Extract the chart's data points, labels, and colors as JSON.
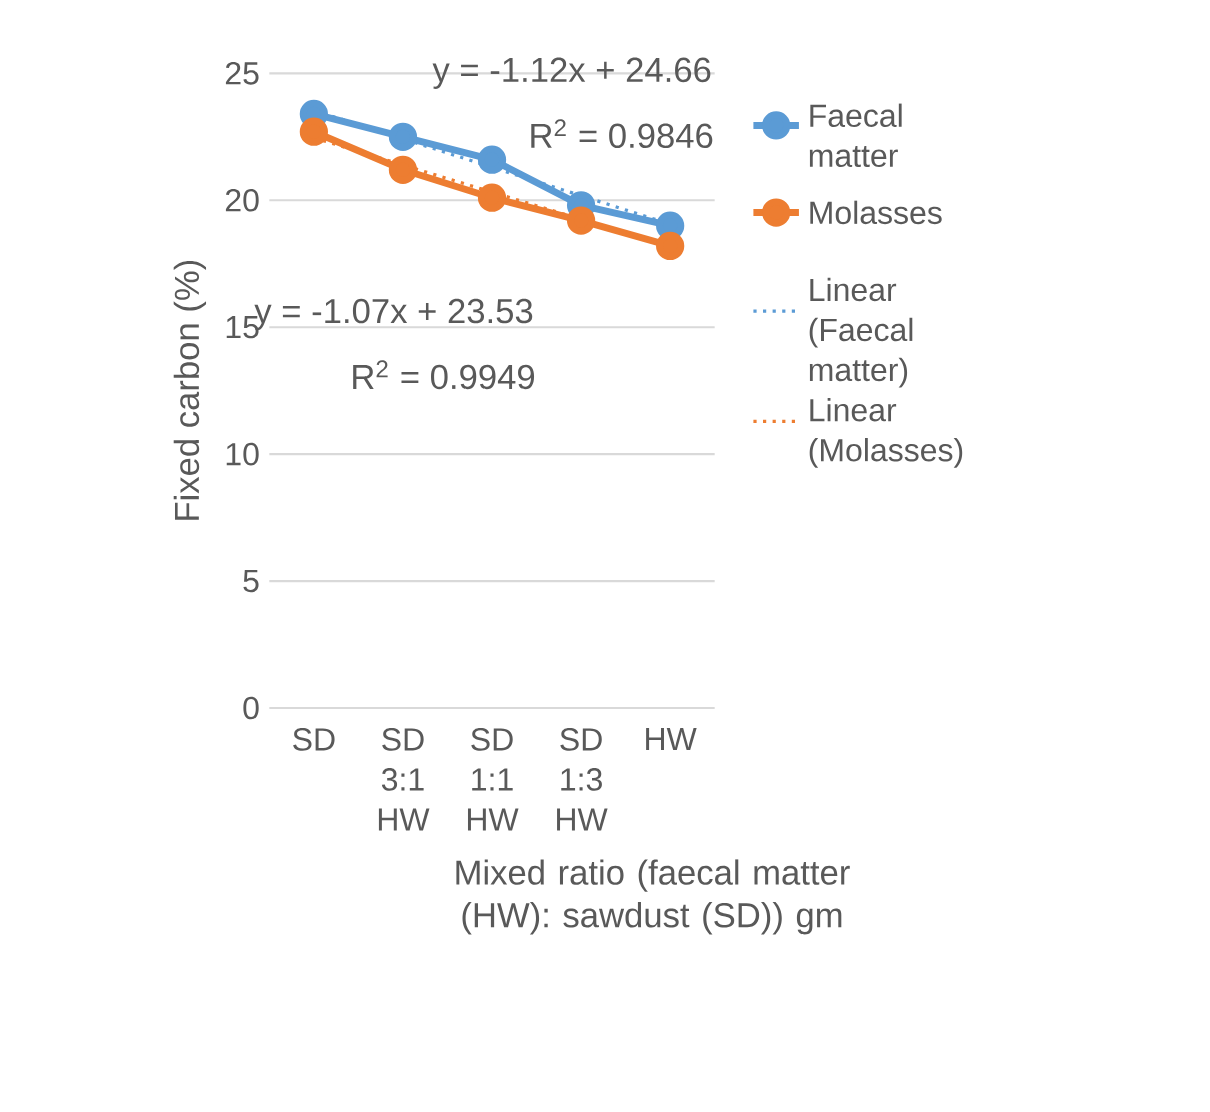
{
  "chart_data": {
    "type": "line",
    "ylabel": "Fixed carbon (%)",
    "xlabel": "Mixed ratio (faecal matter (HW): sawdust (SD)) gm",
    "categories": [
      "SD",
      "SD 3:1 HW",
      "SD 1:1 HW",
      "SD 1:3 HW",
      "HW"
    ],
    "series": [
      {
        "name": "Faecal matter",
        "color": "#5b9bd5",
        "values": [
          23.4,
          22.5,
          21.6,
          19.8,
          19.0
        ],
        "marker": "circle",
        "line_style": "solid"
      },
      {
        "name": "Molasses",
        "color": "#ed7d31",
        "values": [
          22.7,
          21.2,
          20.1,
          19.2,
          18.2
        ],
        "marker": "circle",
        "line_style": "solid"
      },
      {
        "name": "Linear (Faecal matter)",
        "color": "#5b9bd5",
        "values": [
          23.54,
          22.42,
          21.3,
          20.18,
          19.06
        ],
        "marker": "none",
        "line_style": "dotted"
      },
      {
        "name": "Linear (Molasses)",
        "color": "#ed7d31",
        "values": [
          22.46,
          21.39,
          20.32,
          19.25,
          18.18
        ],
        "marker": "none",
        "line_style": "dotted"
      }
    ],
    "ylim": [
      0,
      25
    ],
    "yticks": [
      0,
      5,
      10,
      15,
      20,
      25
    ],
    "grid": "y",
    "legend": "right",
    "annotations": [
      "y = -1.12x + 24.66",
      "R$^{2}$ = 0.9846",
      "y = -1.07x + 23.53",
      "R$^{2}$ = 0.9949"
    ]
  }
}
